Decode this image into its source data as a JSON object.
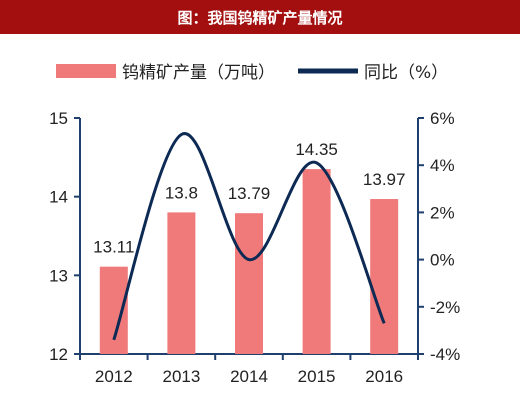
{
  "header": {
    "title": "图：我国钨精矿产量情况"
  },
  "chart_data": {
    "type": "bar+line",
    "categories": [
      "2012",
      "2013",
      "2014",
      "2015",
      "2016"
    ],
    "series": [
      {
        "name": "钨精矿产量（万吨）",
        "type": "bar",
        "axis": "left",
        "values": [
          13.11,
          13.8,
          13.79,
          14.35,
          13.97
        ],
        "labels": [
          "13.11",
          "13.8",
          "13.79",
          "14.35",
          "13.97"
        ],
        "color": "#f07a7a"
      },
      {
        "name": "同比（%）",
        "type": "line",
        "axis": "right",
        "values": [
          -3.4,
          5.3,
          0.0,
          4.1,
          -2.7
        ],
        "color": "#0d2a55"
      }
    ],
    "ylim_left": [
      12,
      15
    ],
    "yticks_left": [
      "12",
      "13",
      "14",
      "15"
    ],
    "ylim_right": [
      -4,
      6
    ],
    "yticks_right": [
      "-4%",
      "-2%",
      "0%",
      "2%",
      "4%",
      "6%"
    ],
    "legend": "top",
    "grid": false
  }
}
